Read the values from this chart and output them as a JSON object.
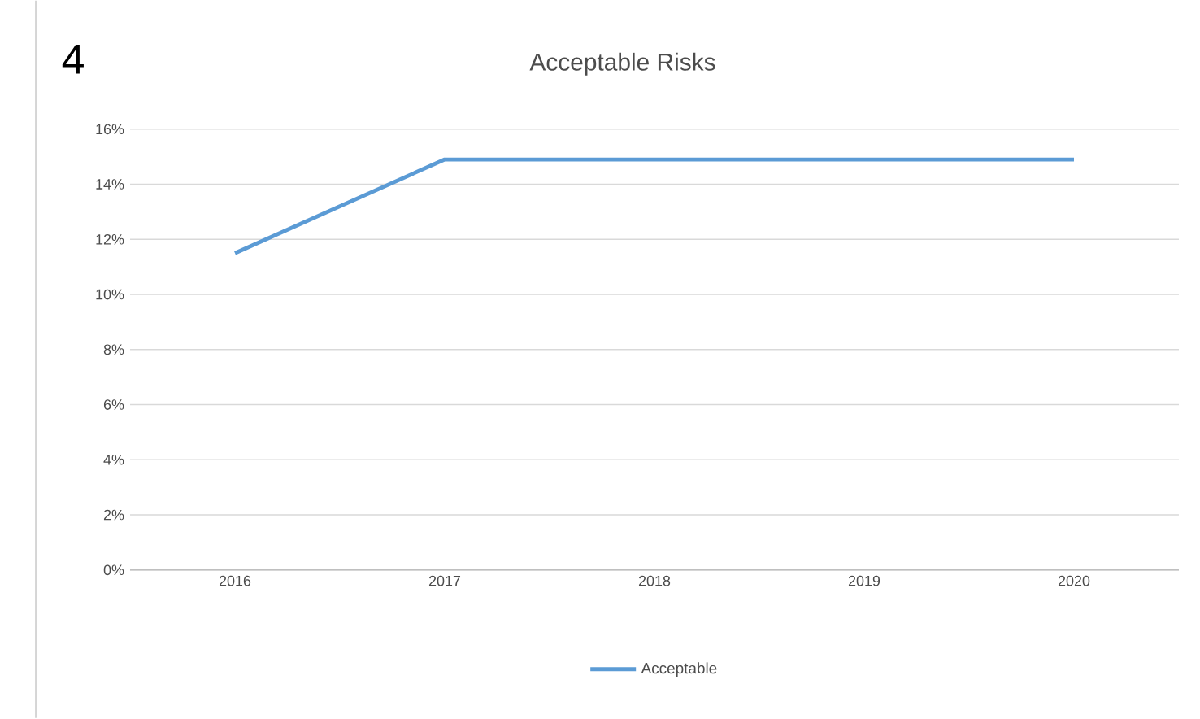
{
  "chart_data": {
    "type": "line",
    "title": "Acceptable Risks",
    "annotations": [
      "4"
    ],
    "categories": [
      "2016",
      "2017",
      "2018",
      "2019",
      "2020"
    ],
    "series": [
      {
        "name": "Acceptable",
        "color": "#5b9bd5",
        "values": [
          11.5,
          14.9,
          14.9,
          14.9,
          14.9
        ]
      }
    ],
    "ylim": [
      0,
      16
    ],
    "yticks": [
      {
        "value": 0,
        "label": "0%"
      },
      {
        "value": 2,
        "label": "2%"
      },
      {
        "value": 4,
        "label": "4%"
      },
      {
        "value": 6,
        "label": "6%"
      },
      {
        "value": 8,
        "label": "8%"
      },
      {
        "value": 10,
        "label": "10%"
      },
      {
        "value": 12,
        "label": "12%"
      },
      {
        "value": 14,
        "label": "14%"
      },
      {
        "value": 16,
        "label": "16%"
      }
    ],
    "grid": "y",
    "legend": "bottom"
  }
}
